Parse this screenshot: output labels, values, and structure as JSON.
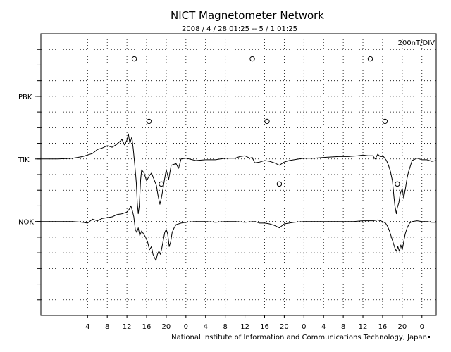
{
  "chart_data": {
    "type": "line",
    "title": "NICT Magnetometer Network",
    "subtitle": "2008 / 4 / 28   01:25 --  5 /  1   01:25",
    "scale_label": "200nT/DIV",
    "credit": "National Institute of Information and Communications Technology, Japan",
    "x_unit": "hours since 2008-04-28 00:00 UT",
    "xlim": [
      -5.5,
      74.9
    ],
    "ylim": [
      -10,
      8
    ],
    "x_ticks": [
      {
        "h": 4,
        "label": "4"
      },
      {
        "h": 8,
        "label": "8"
      },
      {
        "h": 12,
        "label": "12"
      },
      {
        "h": 16,
        "label": "16"
      },
      {
        "h": 20,
        "label": "20"
      },
      {
        "h": 24,
        "label": "0"
      },
      {
        "h": 28,
        "label": "4"
      },
      {
        "h": 32,
        "label": "8"
      },
      {
        "h": 36,
        "label": "12"
      },
      {
        "h": 40,
        "label": "16"
      },
      {
        "h": 44,
        "label": "20"
      },
      {
        "h": 48,
        "label": "0"
      },
      {
        "h": 52,
        "label": "4"
      },
      {
        "h": 56,
        "label": "8"
      },
      {
        "h": 60,
        "label": "12"
      },
      {
        "h": 64,
        "label": "16"
      },
      {
        "h": 68,
        "label": "20"
      },
      {
        "h": 72,
        "label": "0"
      }
    ],
    "grid": true,
    "series": [
      {
        "name": "PBK",
        "baseline": 4,
        "local_midnight_markers_h": [
          13.5,
          37.5,
          61.5
        ],
        "points": []
      },
      {
        "name": "TIK",
        "baseline": 0,
        "local_midnight_markers_h": [
          16.5,
          40.5,
          64.5
        ],
        "points": [
          [
            -5.4,
            0.0
          ],
          [
            -2,
            0.0
          ],
          [
            1,
            0.05
          ],
          [
            3,
            0.15
          ],
          [
            5,
            0.35
          ],
          [
            6,
            0.6
          ],
          [
            7,
            0.7
          ],
          [
            8,
            0.85
          ],
          [
            9,
            0.75
          ],
          [
            10,
            0.95
          ],
          [
            11,
            1.25
          ],
          [
            11.5,
            0.9
          ],
          [
            12,
            1.2
          ],
          [
            12.3,
            1.6
          ],
          [
            12.6,
            1.0
          ],
          [
            13,
            1.4
          ],
          [
            13.3,
            0.6
          ],
          [
            13.6,
            -0.4
          ],
          [
            13.9,
            -1.5
          ],
          [
            14.1,
            -2.8
          ],
          [
            14.3,
            -3.5
          ],
          [
            14.5,
            -3.0
          ],
          [
            14.8,
            -1.3
          ],
          [
            15,
            -0.7
          ],
          [
            15.5,
            -0.9
          ],
          [
            16,
            -1.4
          ],
          [
            16.5,
            -1.1
          ],
          [
            17,
            -0.9
          ],
          [
            17.5,
            -1.3
          ],
          [
            18,
            -1.7
          ],
          [
            18.3,
            -2.3
          ],
          [
            18.5,
            -2.6
          ],
          [
            18.7,
            -2.9
          ],
          [
            19,
            -2.5
          ],
          [
            19.3,
            -2.0
          ],
          [
            19.6,
            -1.4
          ],
          [
            20,
            -0.7
          ],
          [
            20.5,
            -1.3
          ],
          [
            21,
            -0.4
          ],
          [
            22,
            -0.3
          ],
          [
            22.5,
            -0.6
          ],
          [
            23,
            0.0
          ],
          [
            24,
            0.05
          ],
          [
            26,
            -0.1
          ],
          [
            28,
            -0.05
          ],
          [
            30,
            -0.05
          ],
          [
            31,
            0.0
          ],
          [
            32,
            0.05
          ],
          [
            34,
            0.05
          ],
          [
            35,
            0.15
          ],
          [
            36,
            0.2
          ],
          [
            37,
            0.05
          ],
          [
            37.5,
            0.1
          ],
          [
            38,
            -0.25
          ],
          [
            39,
            -0.2
          ],
          [
            40,
            -0.1
          ],
          [
            41,
            -0.15
          ],
          [
            42,
            -0.25
          ],
          [
            43,
            -0.4
          ],
          [
            44,
            -0.2
          ],
          [
            45,
            -0.1
          ],
          [
            46,
            -0.05
          ],
          [
            47,
            0.0
          ],
          [
            48,
            0.05
          ],
          [
            50,
            0.05
          ],
          [
            52,
            0.1
          ],
          [
            55,
            0.15
          ],
          [
            57,
            0.15
          ],
          [
            59,
            0.2
          ],
          [
            60,
            0.25
          ],
          [
            61,
            0.2
          ],
          [
            62,
            0.2
          ],
          [
            62.5,
            0.0
          ],
          [
            63,
            0.3
          ],
          [
            63.5,
            0.15
          ],
          [
            64.2,
            0.15
          ],
          [
            64.8,
            -0.1
          ],
          [
            65.2,
            -0.4
          ],
          [
            65.6,
            -0.8
          ],
          [
            66,
            -1.4
          ],
          [
            66.3,
            -2.4
          ],
          [
            66.5,
            -3.0
          ],
          [
            66.8,
            -3.5
          ],
          [
            67,
            -3.1
          ],
          [
            67.3,
            -2.8
          ],
          [
            67.6,
            -2.2
          ],
          [
            68,
            -1.9
          ],
          [
            68.3,
            -2.5
          ],
          [
            68.6,
            -2.0
          ],
          [
            69,
            -1.2
          ],
          [
            69.3,
            -0.8
          ],
          [
            69.7,
            -0.4
          ],
          [
            70,
            -0.1
          ],
          [
            71,
            0.05
          ],
          [
            72,
            -0.05
          ],
          [
            73,
            -0.05
          ],
          [
            74,
            -0.15
          ],
          [
            74.9,
            -0.1
          ]
        ]
      },
      {
        "name": "NOK",
        "baseline": -4,
        "local_midnight_markers_h": [
          19,
          43,
          67
        ],
        "points": [
          [
            -5.4,
            0.0
          ],
          [
            -2,
            0.0
          ],
          [
            1,
            0.0
          ],
          [
            3,
            -0.05
          ],
          [
            4,
            -0.1
          ],
          [
            5,
            0.15
          ],
          [
            6,
            0.05
          ],
          [
            7,
            0.2
          ],
          [
            8,
            0.25
          ],
          [
            9,
            0.3
          ],
          [
            10,
            0.45
          ],
          [
            11,
            0.5
          ],
          [
            12,
            0.6
          ],
          [
            12.5,
            0.8
          ],
          [
            12.8,
            1.0
          ],
          [
            13.1,
            0.7
          ],
          [
            13.4,
            0.3
          ],
          [
            13.7,
            -0.5
          ],
          [
            14,
            -0.7
          ],
          [
            14.3,
            -0.4
          ],
          [
            14.6,
            -0.9
          ],
          [
            15,
            -0.6
          ],
          [
            15.4,
            -0.8
          ],
          [
            15.8,
            -1.0
          ],
          [
            16.2,
            -1.3
          ],
          [
            16.6,
            -1.8
          ],
          [
            17,
            -1.6
          ],
          [
            17.3,
            -2.1
          ],
          [
            17.6,
            -2.3
          ],
          [
            17.9,
            -2.5
          ],
          [
            18.2,
            -2.1
          ],
          [
            18.5,
            -1.9
          ],
          [
            18.8,
            -2.1
          ],
          [
            19.1,
            -1.7
          ],
          [
            19.4,
            -1.2
          ],
          [
            19.7,
            -0.7
          ],
          [
            20,
            -0.5
          ],
          [
            20.3,
            -0.8
          ],
          [
            20.6,
            -1.6
          ],
          [
            20.9,
            -1.3
          ],
          [
            21.2,
            -0.7
          ],
          [
            21.6,
            -0.4
          ],
          [
            22,
            -0.2
          ],
          [
            23,
            -0.1
          ],
          [
            24,
            -0.05
          ],
          [
            26,
            0.0
          ],
          [
            28,
            0.0
          ],
          [
            30,
            -0.05
          ],
          [
            32,
            0.0
          ],
          [
            34,
            0.0
          ],
          [
            36,
            -0.05
          ],
          [
            38,
            0.0
          ],
          [
            39,
            -0.1
          ],
          [
            40,
            -0.1
          ],
          [
            41,
            -0.15
          ],
          [
            42,
            -0.25
          ],
          [
            43,
            -0.4
          ],
          [
            44,
            -0.15
          ],
          [
            45,
            -0.1
          ],
          [
            46,
            -0.05
          ],
          [
            48,
            0.0
          ],
          [
            50,
            0.0
          ],
          [
            52,
            0.0
          ],
          [
            55,
            0.0
          ],
          [
            58,
            0.0
          ],
          [
            60,
            0.05
          ],
          [
            62,
            0.05
          ],
          [
            63,
            0.1
          ],
          [
            64,
            0.0
          ],
          [
            64.6,
            -0.1
          ],
          [
            65,
            -0.3
          ],
          [
            65.4,
            -0.6
          ],
          [
            65.8,
            -1.0
          ],
          [
            66.2,
            -1.4
          ],
          [
            66.5,
            -1.7
          ],
          [
            66.8,
            -1.9
          ],
          [
            67.1,
            -1.6
          ],
          [
            67.4,
            -1.9
          ],
          [
            67.7,
            -1.5
          ],
          [
            68,
            -1.8
          ],
          [
            68.3,
            -1.3
          ],
          [
            68.6,
            -0.8
          ],
          [
            69,
            -0.4
          ],
          [
            69.5,
            -0.1
          ],
          [
            70,
            0.0
          ],
          [
            71,
            0.05
          ],
          [
            72,
            0.0
          ],
          [
            73,
            0.0
          ],
          [
            74,
            -0.05
          ],
          [
            74.9,
            -0.05
          ]
        ]
      }
    ]
  }
}
